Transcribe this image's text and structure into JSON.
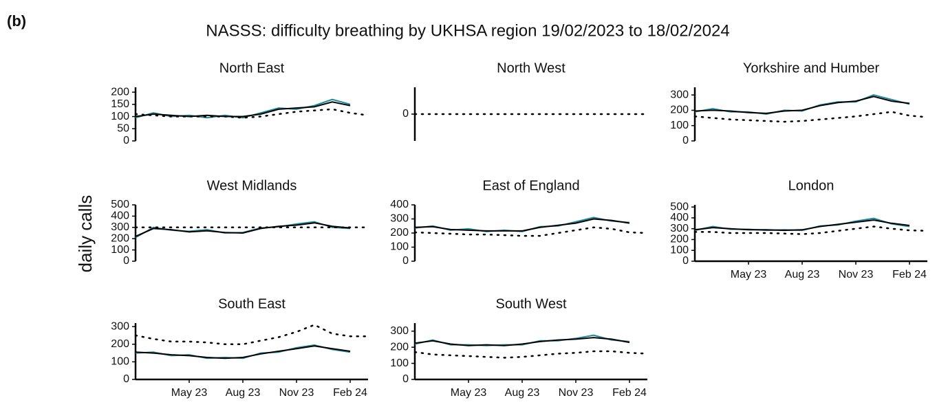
{
  "figure": {
    "label": "(b)",
    "title": "NASSS: difficulty breathing by UKHSA region 19/02/2023 to 18/02/2024",
    "ylabel": "daily calls"
  },
  "chart_data": [
    {
      "type": "line",
      "title": "North East",
      "x": [
        "2023-02",
        "2023-03",
        "2023-04",
        "2023-05",
        "2023-06",
        "2023-07",
        "2023-08",
        "2023-09",
        "2023-10",
        "2023-11",
        "2023-12",
        "2024-01",
        "2024-02",
        "2024-03"
      ],
      "xlim": [
        "2023-02",
        "2024-03"
      ],
      "ylim": [
        0,
        220
      ],
      "yticks": [
        0,
        50,
        100,
        150,
        200
      ],
      "series": [
        {
          "color": "#1a8a9e",
          "style": "solid",
          "values": [
            95,
            115,
            100,
            105,
            95,
            105,
            95,
            115,
            135,
            130,
            145,
            170,
            150,
            null
          ]
        },
        {
          "color": "#000000",
          "style": "solid",
          "values": [
            100,
            110,
            105,
            100,
            105,
            100,
            100,
            110,
            130,
            135,
            140,
            160,
            145,
            null
          ]
        },
        {
          "color": "#000000",
          "style": "dotted",
          "values": [
            110,
            105,
            100,
            100,
            100,
            100,
            95,
            100,
            110,
            120,
            125,
            130,
            115,
            105
          ]
        }
      ]
    },
    {
      "type": "line",
      "title": "North West",
      "x": [
        "2023-02",
        "2023-03",
        "2023-04",
        "2023-05",
        "2023-06",
        "2023-07",
        "2023-08",
        "2023-09",
        "2023-10",
        "2023-11",
        "2023-12",
        "2024-01",
        "2024-02",
        "2024-03"
      ],
      "xlim": [
        "2023-02",
        "2024-03"
      ],
      "ylim": [
        -1,
        1
      ],
      "yticks": [
        0
      ],
      "series": [
        {
          "color": "#000000",
          "style": "dotted",
          "values": [
            0,
            0,
            0,
            0,
            0,
            0,
            0,
            0,
            0,
            0,
            0,
            0,
            0,
            0
          ]
        }
      ]
    },
    {
      "type": "line",
      "title": "Yorkshire and Humber",
      "x": [
        "2023-02",
        "2023-03",
        "2023-04",
        "2023-05",
        "2023-06",
        "2023-07",
        "2023-08",
        "2023-09",
        "2023-10",
        "2023-11",
        "2023-12",
        "2024-01",
        "2024-02",
        "2024-03"
      ],
      "xlim": [
        "2023-02",
        "2024-03"
      ],
      "ylim": [
        0,
        350
      ],
      "yticks": [
        0,
        100,
        200,
        300
      ],
      "series": [
        {
          "color": "#1a8a9e",
          "style": "solid",
          "values": [
            190,
            210,
            190,
            190,
            175,
            200,
            195,
            235,
            255,
            255,
            300,
            270,
            240,
            null
          ]
        },
        {
          "color": "#000000",
          "style": "solid",
          "values": [
            195,
            200,
            195,
            185,
            180,
            195,
            200,
            230,
            250,
            260,
            290,
            260,
            245,
            null
          ]
        },
        {
          "color": "#000000",
          "style": "dotted",
          "values": [
            160,
            150,
            140,
            135,
            130,
            125,
            130,
            140,
            150,
            160,
            175,
            190,
            165,
            155
          ]
        }
      ]
    },
    {
      "type": "line",
      "title": "West Midlands",
      "x": [
        "2023-02",
        "2023-03",
        "2023-04",
        "2023-05",
        "2023-06",
        "2023-07",
        "2023-08",
        "2023-09",
        "2023-10",
        "2023-11",
        "2023-12",
        "2024-01",
        "2024-02",
        "2024-03"
      ],
      "xlim": [
        "2023-02",
        "2024-03"
      ],
      "ylim": [
        0,
        500
      ],
      "yticks": [
        0,
        100,
        200,
        300,
        400,
        500
      ],
      "series": [
        {
          "color": "#1a8a9e",
          "style": "solid",
          "values": [
            210,
            300,
            275,
            265,
            280,
            250,
            255,
            295,
            305,
            330,
            350,
            300,
            290,
            null
          ]
        },
        {
          "color": "#000000",
          "style": "solid",
          "values": [
            220,
            290,
            280,
            260,
            270,
            255,
            250,
            290,
            310,
            320,
            340,
            310,
            295,
            null
          ]
        },
        {
          "color": "#000000",
          "style": "dotted",
          "values": [
            300,
            300,
            300,
            300,
            300,
            300,
            300,
            300,
            300,
            300,
            300,
            300,
            300,
            300
          ]
        }
      ]
    },
    {
      "type": "line",
      "title": "East of England",
      "x": [
        "2023-02",
        "2023-03",
        "2023-04",
        "2023-05",
        "2023-06",
        "2023-07",
        "2023-08",
        "2023-09",
        "2023-10",
        "2023-11",
        "2023-12",
        "2024-01",
        "2024-02",
        "2024-03"
      ],
      "xlim": [
        "2023-02",
        "2024-03"
      ],
      "ylim": [
        0,
        400
      ],
      "yticks": [
        0,
        100,
        200,
        300,
        400
      ],
      "series": [
        {
          "color": "#1a8a9e",
          "style": "solid",
          "values": [
            235,
            250,
            220,
            230,
            210,
            220,
            210,
            245,
            250,
            280,
            310,
            285,
            275,
            null
          ]
        },
        {
          "color": "#000000",
          "style": "solid",
          "values": [
            240,
            245,
            225,
            220,
            215,
            215,
            215,
            240,
            255,
            270,
            300,
            290,
            270,
            null
          ]
        },
        {
          "color": "#000000",
          "style": "dotted",
          "values": [
            205,
            200,
            195,
            190,
            190,
            185,
            180,
            180,
            200,
            220,
            240,
            230,
            205,
            200
          ]
        }
      ]
    },
    {
      "type": "line",
      "title": "London",
      "x": [
        "2023-02",
        "2023-03",
        "2023-04",
        "2023-05",
        "2023-06",
        "2023-07",
        "2023-08",
        "2023-09",
        "2023-10",
        "2023-11",
        "2023-12",
        "2024-01",
        "2024-02",
        "2024-03"
      ],
      "xlim": [
        "2023-02",
        "2024-03"
      ],
      "ylim": [
        0,
        520
      ],
      "yticks": [
        0,
        100,
        200,
        300,
        400,
        500
      ],
      "xticks": [
        {
          "value": "2023-05",
          "label": "May 23"
        },
        {
          "value": "2023-08",
          "label": "Aug 23"
        },
        {
          "value": "2023-11",
          "label": "Nov 23"
        },
        {
          "value": "2024-02",
          "label": "Feb 24"
        }
      ],
      "series": [
        {
          "color": "#1a8a9e",
          "style": "solid",
          "values": [
            285,
            320,
            295,
            295,
            285,
            290,
            285,
            325,
            335,
            370,
            395,
            345,
            320,
            null
          ]
        },
        {
          "color": "#000000",
          "style": "solid",
          "values": [
            290,
            310,
            300,
            290,
            290,
            285,
            290,
            320,
            340,
            360,
            380,
            350,
            330,
            null
          ]
        },
        {
          "color": "#000000",
          "style": "dotted",
          "values": [
            270,
            270,
            260,
            260,
            260,
            255,
            250,
            260,
            280,
            300,
            320,
            300,
            285,
            280
          ]
        }
      ]
    },
    {
      "type": "line",
      "title": "South East",
      "x": [
        "2023-02",
        "2023-03",
        "2023-04",
        "2023-05",
        "2023-06",
        "2023-07",
        "2023-08",
        "2023-09",
        "2023-10",
        "2023-11",
        "2023-12",
        "2024-01",
        "2024-02",
        "2024-03"
      ],
      "xlim": [
        "2023-02",
        "2024-03"
      ],
      "ylim": [
        0,
        320
      ],
      "yticks": [
        0,
        100,
        200,
        300
      ],
      "xticks": [
        {
          "value": "2023-05",
          "label": "May 23"
        },
        {
          "value": "2023-08",
          "label": "Aug 23"
        },
        {
          "value": "2023-11",
          "label": "Nov 23"
        },
        {
          "value": "2024-02",
          "label": "Feb 24"
        }
      ],
      "series": [
        {
          "color": "#1a8a9e",
          "style": "solid",
          "values": [
            150,
            155,
            135,
            140,
            120,
            125,
            120,
            150,
            155,
            180,
            195,
            170,
            155,
            null
          ]
        },
        {
          "color": "#000000",
          "style": "solid",
          "values": [
            155,
            150,
            140,
            135,
            125,
            120,
            125,
            145,
            160,
            175,
            190,
            175,
            160,
            null
          ]
        },
        {
          "color": "#000000",
          "style": "dotted",
          "values": [
            250,
            230,
            215,
            215,
            210,
            200,
            200,
            220,
            240,
            270,
            310,
            260,
            245,
            245
          ]
        }
      ]
    },
    {
      "type": "line",
      "title": "South West",
      "x": [
        "2023-02",
        "2023-03",
        "2023-04",
        "2023-05",
        "2023-06",
        "2023-07",
        "2023-08",
        "2023-09",
        "2023-10",
        "2023-11",
        "2023-12",
        "2024-01",
        "2024-02",
        "2024-03"
      ],
      "xlim": [
        "2023-02",
        "2024-03"
      ],
      "ylim": [
        0,
        350
      ],
      "yticks": [
        0,
        100,
        200,
        300
      ],
      "xticks": [
        {
          "value": "2023-05",
          "label": "May 23"
        },
        {
          "value": "2023-08",
          "label": "Aug 23"
        },
        {
          "value": "2023-11",
          "label": "Nov 23"
        },
        {
          "value": "2024-02",
          "label": "Feb 24"
        }
      ],
      "series": [
        {
          "color": "#1a8a9e",
          "style": "solid",
          "values": [
            220,
            245,
            215,
            215,
            210,
            215,
            215,
            240,
            240,
            255,
            275,
            245,
            235,
            null
          ]
        },
        {
          "color": "#000000",
          "style": "solid",
          "values": [
            225,
            240,
            220,
            210,
            215,
            210,
            220,
            235,
            245,
            250,
            260,
            250,
            230,
            null
          ]
        },
        {
          "color": "#000000",
          "style": "dotted",
          "values": [
            170,
            155,
            150,
            145,
            140,
            135,
            140,
            150,
            160,
            165,
            175,
            175,
            165,
            160
          ]
        }
      ]
    }
  ]
}
